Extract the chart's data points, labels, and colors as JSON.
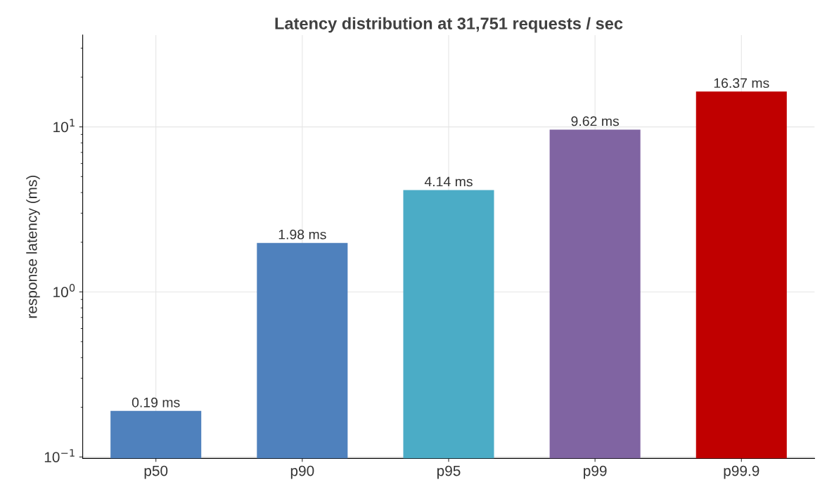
{
  "chart_data": {
    "type": "bar",
    "title": "Latency distribution at 31,751 requests / sec",
    "ylabel": "response latency (ms)",
    "categories": [
      "p50",
      "p90",
      "p95",
      "p99",
      "p99.9"
    ],
    "values": [
      0.19,
      1.98,
      4.14,
      9.62,
      16.37
    ],
    "colors": [
      "#4f81bd",
      "#4f81bd",
      "#4bacc6",
      "#8064a2",
      "#c00000"
    ],
    "value_labels": [
      "0.19 ms",
      "1.98 ms",
      "4.14 ms",
      "9.62 ms",
      "16.37 ms"
    ],
    "log": true,
    "ylim": [
      0.098,
      36
    ],
    "yticks": [
      {
        "value": 0.1,
        "label": "10$^{−1}$"
      },
      {
        "value": 1,
        "label": "10$^{0}$"
      },
      {
        "value": 10,
        "label": "10$^{1}$"
      }
    ],
    "grid": true
  }
}
